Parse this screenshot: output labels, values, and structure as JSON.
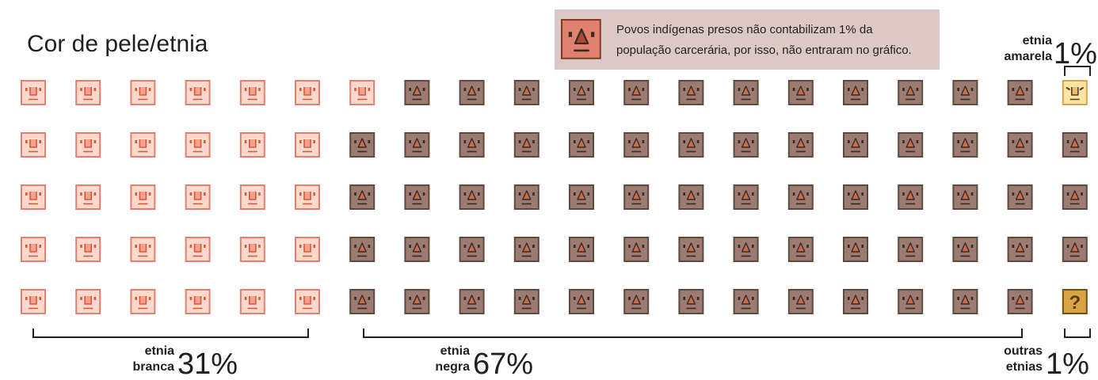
{
  "title": "Cor de pele/etnia",
  "note": {
    "line1": "Povos indígenas presos não contabilizam 1% da",
    "line2": "população carcerária, por isso, não entraram no gráfico."
  },
  "labels": {
    "branca": {
      "word1": "etnia",
      "word2": "branca",
      "pct": "31%"
    },
    "negra": {
      "word1": "etnia",
      "word2": "negra",
      "pct": "67%"
    },
    "amarela": {
      "word1": "etnia",
      "word2": "amarela",
      "pct": "1%"
    },
    "outras": {
      "word1": "outras",
      "word2": "etnias",
      "pct": "1%"
    }
  },
  "chart_data": {
    "type": "pictogram",
    "title": "Cor de pele/etnia",
    "grid": {
      "rows": 5,
      "columns": 20,
      "total_icons": 100
    },
    "categories": [
      "etnia branca",
      "etnia negra",
      "etnia amarela",
      "outras etnias"
    ],
    "values": [
      31,
      67,
      1,
      1
    ],
    "unit": "%",
    "note": "Povos indígenas presos não contabilizam 1% da população carcerária, por isso, não entraram no gráfico.",
    "colors": {
      "branca": "#fcd9cc",
      "negra": "#9b7b72",
      "amarela": "#fde3a4",
      "outras": "#d9a443",
      "indigena": "#e0816f"
    }
  },
  "icons": {
    "branca": "white-face-icon",
    "negra": "black-face-icon",
    "amarela": "yellow-face-icon",
    "outras": "question-icon",
    "indigena": "indigenous-face-icon"
  }
}
